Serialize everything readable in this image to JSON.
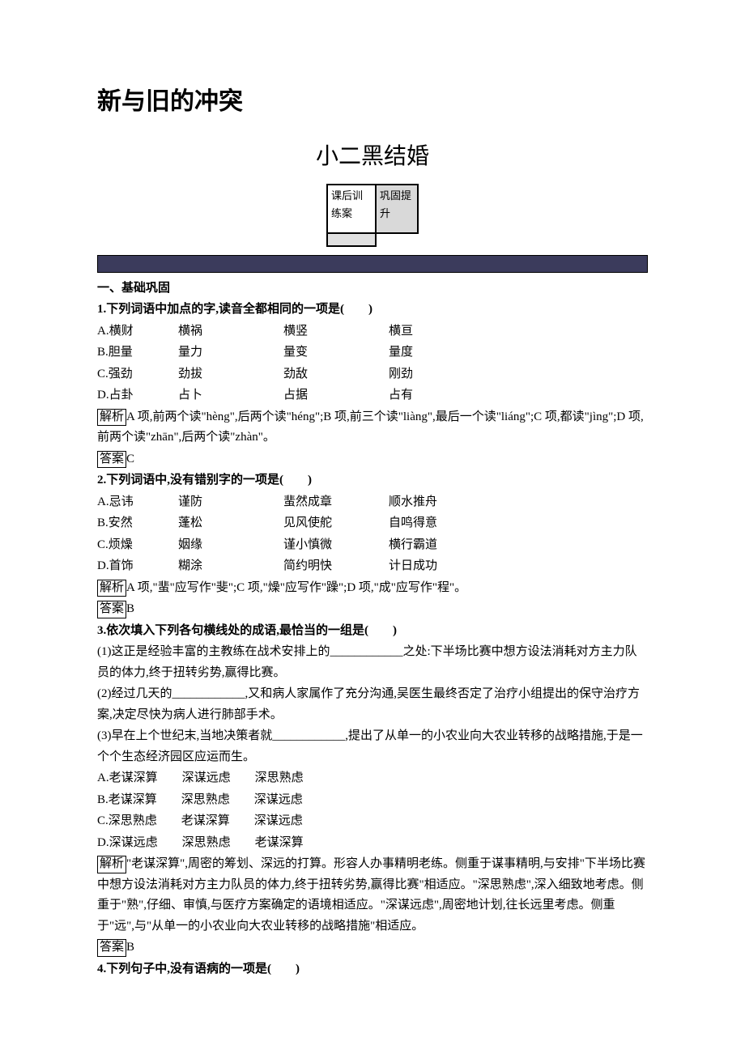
{
  "title_main": "新与旧的冲突",
  "title_sub": "小二黑结婚",
  "box": {
    "left": "课后训练案",
    "right": "巩固提升"
  },
  "section1": "一、基础巩固",
  "q1": {
    "stem": "1.下列词语中加点的字,读音全都相同的一项是(　　)",
    "a": [
      "A.横财",
      "横祸",
      "横竖",
      "横亘"
    ],
    "b": [
      "B.胆量",
      "量力",
      "量变",
      "量度"
    ],
    "c": [
      "C.强劲",
      "劲拔",
      "劲敌",
      "刚劲"
    ],
    "d": [
      "D.占卦",
      "占卜",
      "占据",
      "占有"
    ],
    "explain_label": "解析",
    "explain": "A 项,前两个读\"hèng\",后两个读\"héng\";B 项,前三个读\"liàng\",最后一个读\"liáng\";C 项,都读\"jìng\";D 项,前两个读\"zhān\",后两个读\"zhàn\"。",
    "answer_label": "答案",
    "answer": "C"
  },
  "q2": {
    "stem": "2.下列词语中,没有错别字的一项是(　　)",
    "a": [
      "A.忌讳",
      "谨防",
      "蜚然成章",
      "顺水推舟"
    ],
    "b": [
      "B.安然",
      "蓬松",
      "见风使舵",
      "自鸣得意"
    ],
    "c": [
      "C.烦燥",
      "姻缘",
      "谨小慎微",
      "横行霸道"
    ],
    "d": [
      "D.首饰",
      "糊涂",
      "简约明快",
      "计日成功"
    ],
    "explain_label": "解析",
    "explain": "A 项,\"蜚\"应写作\"斐\";C 项,\"燥\"应写作\"躁\";D 项,\"成\"应写作\"程\"。",
    "answer_label": "答案",
    "answer": "B"
  },
  "q3": {
    "stem": "3.依次填入下列各句横线处的成语,最恰当的一组是(　　)",
    "s1": "(1)这正是经验丰富的主教练在战术安排上的____________之处:下半场比赛中想方设法消耗对方主力队员的体力,终于扭转劣势,赢得比赛。",
    "s2": "(2)经过几天的____________,又和病人家属作了充分沟通,吴医生最终否定了治疗小组提出的保守治疗方案,决定尽快为病人进行肺部手术。",
    "s3": "(3)早在上个世纪末,当地决策者就____________,提出了从单一的小农业向大农业转移的战略措施,于是一个个生态经济园区应运而生。",
    "a": "A.老谋深算　　深谋远虑　　深思熟虑",
    "b": "B.老谋深算　　深思熟虑　　深谋远虑",
    "c": "C.深思熟虑　　老谋深算　　深谋远虑",
    "d": "D.深谋远虑　　深思熟虑　　老谋深算",
    "explain_label": "解析",
    "explain": "\"老谋深算\",周密的筹划、深远的打算。形容人办事精明老练。侧重于谋事精明,与安排\"下半场比赛中想方设法消耗对方主力队员的体力,终于扭转劣势,赢得比赛\"相适应。\"深思熟虑\",深入细致地考虑。侧重于\"熟\",仔细、审慎,与医疗方案确定的语境相适应。\"深谋远虑\",周密地计划,往长远里考虑。侧重于\"远\",与\"从单一的小农业向大农业转移的战略措施\"相适应。",
    "answer_label": "答案",
    "answer": "B"
  },
  "q4": {
    "stem": "4.下列句子中,没有语病的一项是(　　)"
  }
}
